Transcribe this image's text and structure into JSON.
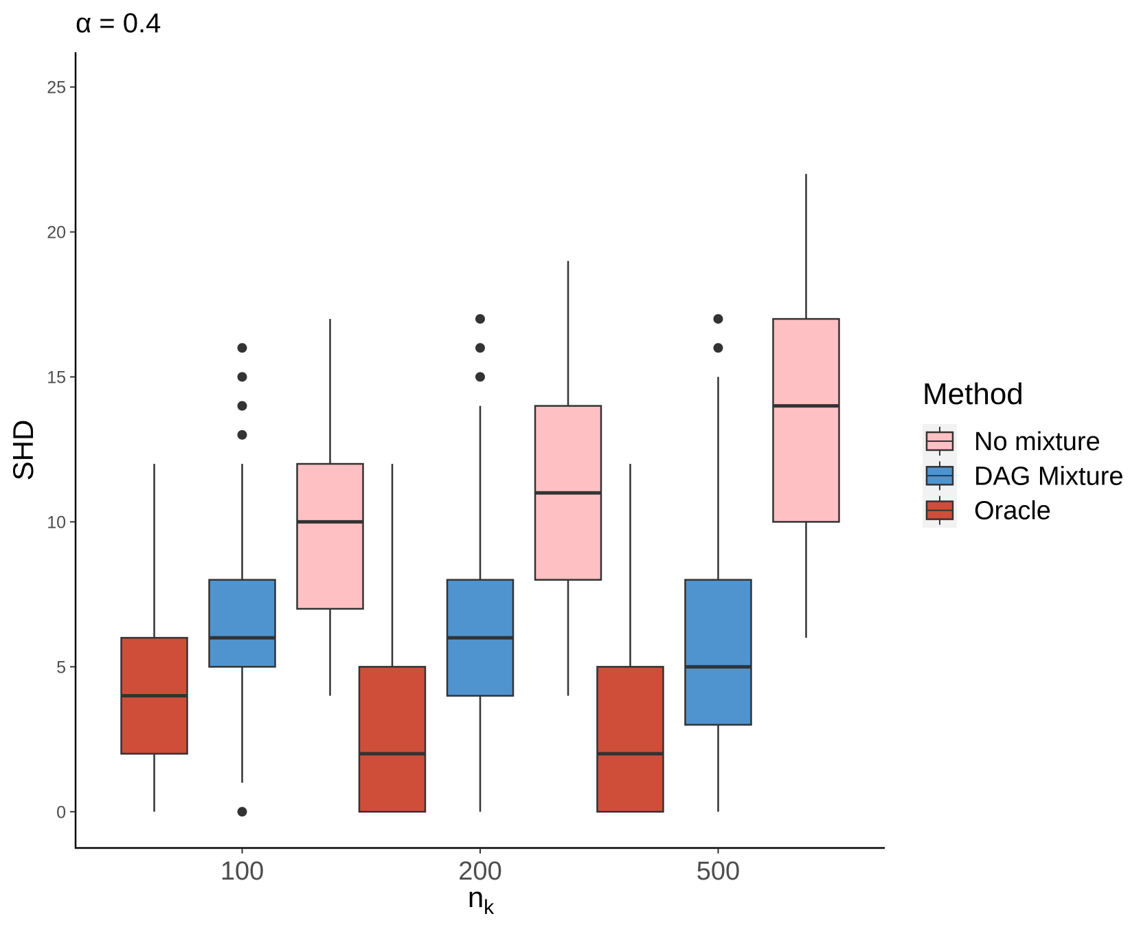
{
  "chart_data": {
    "type": "boxplot",
    "title": "α = 0.4",
    "xlabel": "n",
    "xlabel_subscript": "k",
    "ylabel": "SHD",
    "ylim": [
      -1.25,
      26.2
    ],
    "yticks": [
      0,
      5,
      10,
      15,
      20,
      25
    ],
    "categories": [
      "100",
      "200",
      "500"
    ],
    "legend": {
      "title": "Method",
      "position": "right",
      "entries": [
        "No mixture",
        "DAG Mixture",
        "Oracle"
      ]
    },
    "colors": {
      "No mixture": "#FFC0C3",
      "DAG Mixture": "#4F94CF",
      "Oracle": "#CE4E3A",
      "outline": "#333333"
    },
    "series": [
      {
        "name": "Oracle",
        "boxes": [
          {
            "category": "100",
            "min": 0,
            "q1": 2,
            "median": 4,
            "q3": 6,
            "max": 12,
            "outliers": []
          },
          {
            "category": "200",
            "min": 0,
            "q1": 0,
            "median": 2,
            "q3": 5,
            "max": 12,
            "outliers": []
          },
          {
            "category": "500",
            "min": 0,
            "q1": 0,
            "median": 2,
            "q3": 5,
            "max": 12,
            "outliers": []
          }
        ]
      },
      {
        "name": "DAG Mixture",
        "boxes": [
          {
            "category": "100",
            "min": 1,
            "q1": 5,
            "median": 6,
            "q3": 8,
            "max": 12,
            "outliers": [
              0,
              13,
              14,
              15,
              16
            ]
          },
          {
            "category": "200",
            "min": 0,
            "q1": 4,
            "median": 6,
            "q3": 8,
            "max": 14,
            "outliers": [
              15,
              16,
              17
            ]
          },
          {
            "category": "500",
            "min": 0,
            "q1": 3,
            "median": 5,
            "q3": 8,
            "max": 15,
            "outliers": [
              16,
              17
            ]
          }
        ]
      },
      {
        "name": "No mixture",
        "boxes": [
          {
            "category": "100",
            "min": 4,
            "q1": 7,
            "median": 10,
            "q3": 12,
            "max": 17,
            "outliers": []
          },
          {
            "category": "200",
            "min": 4,
            "q1": 8,
            "median": 11,
            "q3": 14,
            "max": 19,
            "outliers": []
          },
          {
            "category": "500",
            "min": 6,
            "q1": 10,
            "median": 14,
            "q3": 17,
            "max": 22,
            "outliers": []
          }
        ]
      }
    ]
  }
}
